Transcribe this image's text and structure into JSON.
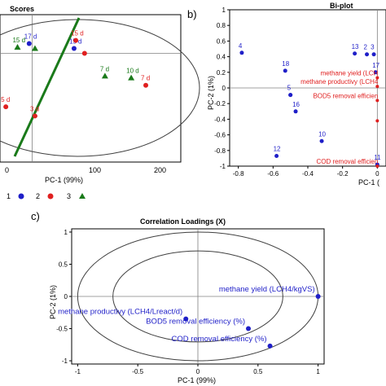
{
  "colors": {
    "axis": "#000000",
    "grid": "#808080",
    "blue": "#1f1fc8",
    "red": "#e02020",
    "green": "#1a7a1a",
    "ellipse": "#404040"
  },
  "panel_a": {
    "title": "Scores",
    "xlabel": "PC-1 (99%)",
    "xticks": [
      "0",
      "100",
      "200"
    ],
    "legend": {
      "items": [
        "1",
        "2",
        "3"
      ]
    }
  },
  "panel_b": {
    "tag": "b)",
    "title": "Bi-plot",
    "xlabel": "PC-1 (",
    "ylabel": "PC-2 (1%)"
  },
  "panel_c": {
    "tag": "c)",
    "title": "Correlation Loadings (X)",
    "xlabel": "PC-1 (99%)",
    "ylabel": "PC-2 (1%)"
  },
  "chart_data": [
    {
      "type": "scatter",
      "panel": "a",
      "title": "Scores",
      "xlabel": "PC-1 (99%)",
      "ylabel": "",
      "xlim": [
        -55,
        255
      ],
      "ylim": [
        -1.25,
        1.15
      ],
      "series": [
        {
          "name": "1",
          "marker": "circle",
          "color": "#1f1fc8",
          "points": [
            {
              "label": "17 d",
              "x": -5,
              "y": 0.68
            },
            {
              "label": "15 d",
              "x": 72,
              "y": 0.6
            }
          ]
        },
        {
          "name": "2",
          "marker": "circle",
          "color": "#e02020",
          "points": [
            {
              "label": "15 d",
              "x": 75,
              "y": 0.73
            },
            {
              "label": "7 d",
              "x": 195,
              "y": 0.0
            },
            {
              "label": "5 d",
              "x": -45,
              "y": -0.35
            },
            {
              "label": "3 d",
              "x": 5,
              "y": -0.5
            },
            {
              "label": "",
              "x": 90,
              "y": 0.52
            }
          ]
        },
        {
          "name": "3",
          "marker": "triangle",
          "color": "#1a7a1a",
          "points": [
            {
              "label": "15 d",
              "x": -25,
              "y": 0.62
            },
            {
              "label": "",
              "x": 5,
              "y": 0.6
            },
            {
              "label": "7 d",
              "x": 125,
              "y": 0.15
            },
            {
              "label": "10 d",
              "x": 170,
              "y": 0.12
            }
          ]
        }
      ]
    },
    {
      "type": "scatter",
      "panel": "b",
      "title": "Bi-plot",
      "xlabel": "PC-1 (",
      "ylabel": "PC-2 (1%)",
      "xlim": [
        -0.85,
        0.05
      ],
      "ylim": [
        -1.0,
        1.0
      ],
      "xticks": [
        "-0.8",
        "-0.6",
        "-0.4",
        "-0.2",
        "0"
      ],
      "yticks": [
        "1",
        "0.8",
        "0.6",
        "0.4",
        "0.2",
        "0",
        "-0.2",
        "-0.4",
        "-0.6",
        "-0.8",
        "-1"
      ],
      "scores": [
        {
          "label": "4",
          "x": -0.78,
          "y": 0.45
        },
        {
          "label": "18",
          "x": -0.53,
          "y": 0.22
        },
        {
          "label": "",
          "x": -0.5,
          "y": -0.09
        },
        {
          "label": "5",
          "x": -0.5,
          "y": -0.09
        },
        {
          "label": "16",
          "x": -0.47,
          "y": -0.3
        },
        {
          "label": "13",
          "x": -0.13,
          "y": 0.44
        },
        {
          "label": "2",
          "x": -0.06,
          "y": 0.43
        },
        {
          "label": "3",
          "x": -0.02,
          "y": 0.43
        },
        {
          "label": "17",
          "x": -0.01,
          "y": 0.2
        },
        {
          "label": "10",
          "x": -0.32,
          "y": -0.68
        },
        {
          "label": "12",
          "x": -0.58,
          "y": -0.87
        },
        {
          "label": "11",
          "x": 0.0,
          "y": -0.98
        }
      ],
      "loadings": [
        {
          "label": "methane yield (LCH",
          "x": 0.0,
          "y": 0.13
        },
        {
          "label": "methane productivy (LCH4",
          "x": 0.0,
          "y": 0.02
        },
        {
          "label": "BOD5 removal efficien",
          "x": 0.0,
          "y": -0.16
        },
        {
          "label": "",
          "x": 0.0,
          "y": -0.42
        },
        {
          "label": "COD removal efficien",
          "x": 0.0,
          "y": -1.0
        }
      ]
    },
    {
      "type": "scatter",
      "panel": "c",
      "title": "Correlation Loadings (X)",
      "xlabel": "PC-1 (99%)",
      "ylabel": "PC-2 (1%)",
      "xlim": [
        -1.05,
        1.05
      ],
      "ylim": [
        -1.05,
        1.05
      ],
      "xticks": [
        "-1",
        "-0.5",
        "0",
        "0.5",
        "1"
      ],
      "yticks": [
        "1",
        "0.5",
        "0",
        "-0.5",
        "-1"
      ],
      "circles": [
        1.0,
        0.707
      ],
      "points": [
        {
          "label": "methane yield (LCH4/kgVS)",
          "x": 1.0,
          "y": 0.0
        },
        {
          "label": "methane productivy (LCH4/Lreact/d)",
          "x": -0.1,
          "y": -0.35
        },
        {
          "label": "BOD5 removal efficiency (%)",
          "x": 0.42,
          "y": -0.5
        },
        {
          "label": "COD removal efficiency (%)",
          "x": 0.6,
          "y": -0.77
        }
      ]
    }
  ]
}
